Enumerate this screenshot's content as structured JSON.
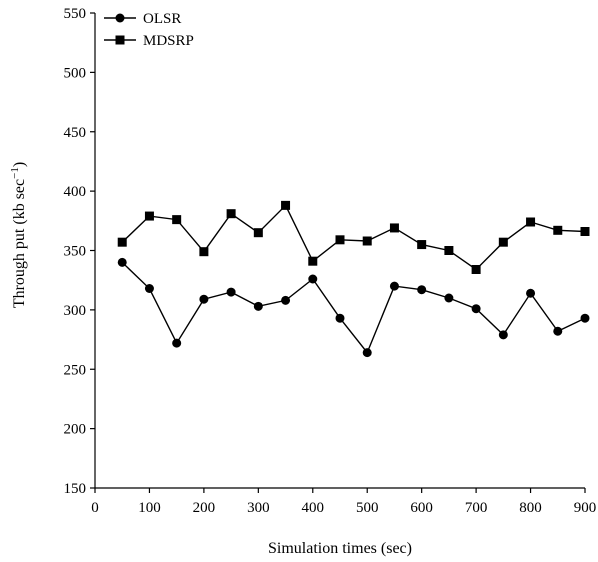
{
  "chart_data": {
    "type": "line",
    "xlabel": "Simulation times (sec)",
    "ylabel_main": "Through put (kb sec",
    "ylabel_sup": "−1",
    "ylabel_close": ")",
    "xlim": [
      0,
      900
    ],
    "ylim": [
      150,
      550
    ],
    "xticks": [
      0,
      100,
      200,
      300,
      400,
      500,
      600,
      700,
      800,
      900
    ],
    "yticks": [
      150,
      200,
      250,
      300,
      350,
      400,
      450,
      500,
      550
    ],
    "grid": false,
    "legend_position": "top-left",
    "x": [
      50,
      100,
      150,
      200,
      250,
      300,
      350,
      400,
      450,
      500,
      550,
      600,
      650,
      700,
      750,
      800,
      850,
      900
    ],
    "series": [
      {
        "name": "OLSR",
        "marker": "circle",
        "color": "#000000",
        "values": [
          340,
          318,
          272,
          309,
          315,
          303,
          308,
          326,
          293,
          264,
          320,
          317,
          310,
          301,
          279,
          314,
          282,
          293
        ]
      },
      {
        "name": "MDSRP",
        "marker": "square",
        "color": "#000000",
        "values": [
          357,
          379,
          376,
          349,
          381,
          365,
          388,
          341,
          359,
          358,
          369,
          355,
          350,
          334,
          357,
          374,
          367,
          366
        ]
      }
    ]
  }
}
